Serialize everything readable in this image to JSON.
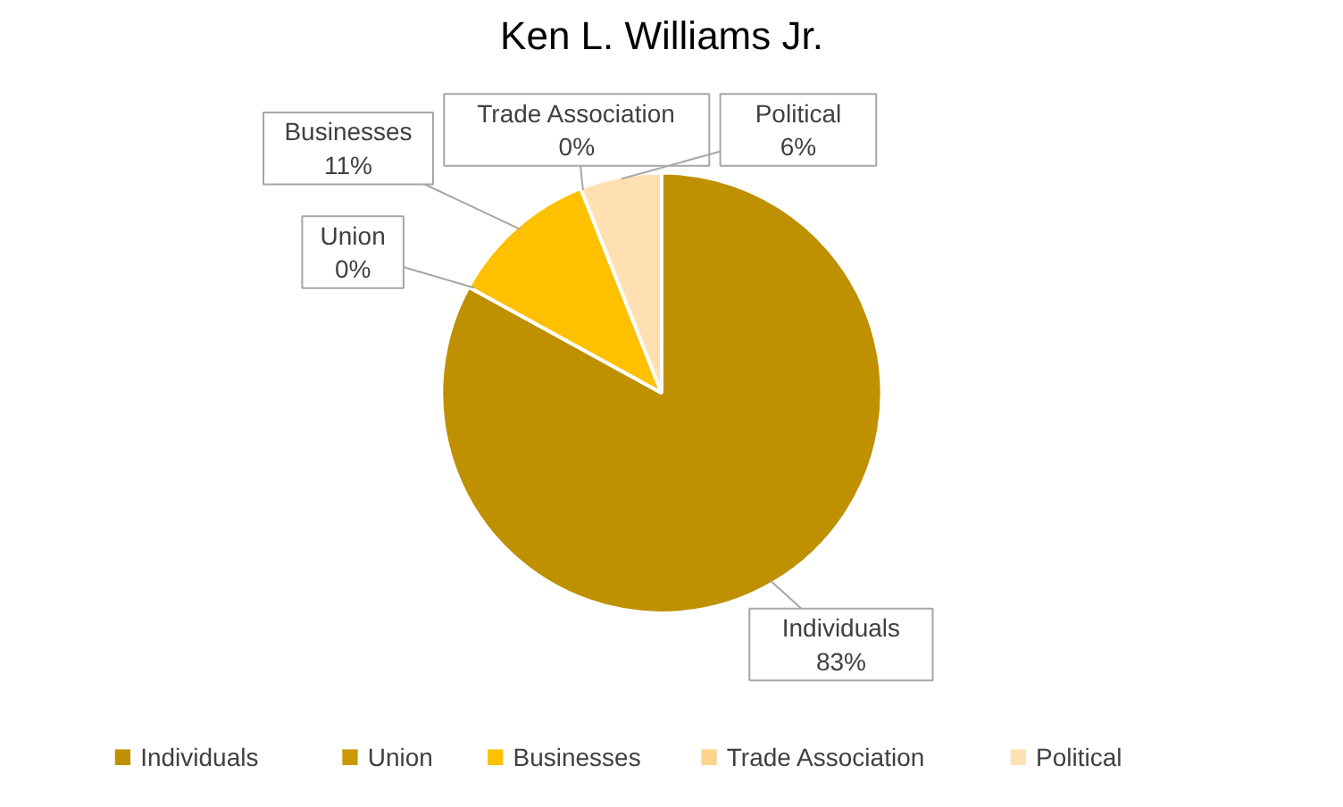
{
  "chart_data": {
    "type": "pie",
    "title": "Ken L. Williams Jr.",
    "categories": [
      "Individuals",
      "Union",
      "Businesses",
      "Trade Association",
      "Political"
    ],
    "values": [
      83,
      0,
      11,
      0,
      6
    ],
    "colors": [
      "#bf9000",
      "#c99a06",
      "#ffc000",
      "#ffd38a",
      "#ffe0b3"
    ],
    "value_labels": [
      "83%",
      "0%",
      "11%",
      "0%",
      "6%"
    ],
    "legend": "bottom"
  }
}
